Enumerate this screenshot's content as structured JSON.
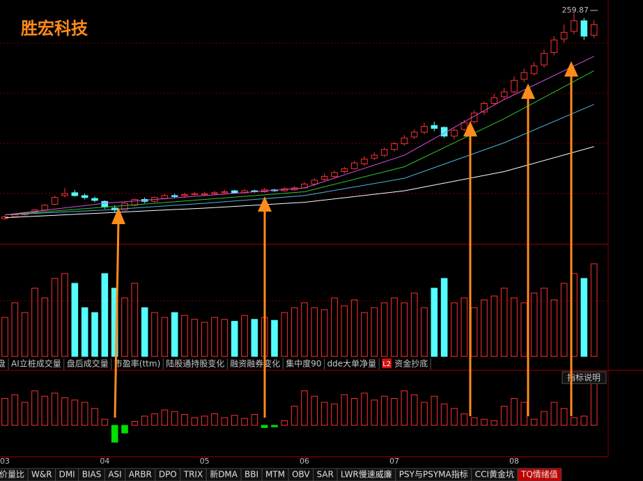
{
  "chart_data": {
    "type": "candlestick",
    "title": "胜宏科技",
    "open": [
      46,
      48,
      50,
      53,
      55,
      61,
      70,
      73,
      70,
      67,
      64,
      57,
      55,
      60,
      66,
      64,
      67,
      70,
      70,
      71,
      71,
      72,
      73,
      75,
      73,
      75,
      74,
      76,
      75,
      76,
      78,
      82,
      87,
      90,
      95,
      98,
      103,
      109,
      112,
      118,
      124,
      131,
      136,
      143,
      141,
      132,
      139,
      147,
      157,
      166,
      173,
      178,
      191,
      197,
      206,
      219,
      233,
      241,
      252,
      237
    ],
    "close": [
      48,
      50,
      52,
      55,
      60,
      68,
      72,
      70,
      68,
      65,
      58,
      55,
      62,
      66,
      64,
      68,
      70,
      69,
      71,
      72,
      72,
      73,
      74,
      73,
      75,
      74,
      76,
      75,
      77,
      78,
      82,
      86,
      90,
      94,
      98,
      104,
      108,
      112,
      118,
      124,
      130,
      136,
      142,
      140,
      132,
      138,
      146,
      156,
      166,
      172,
      178,
      190,
      198,
      205,
      218,
      232,
      240,
      252,
      236,
      248
    ],
    "high": [
      49,
      51,
      53,
      56,
      61,
      70,
      78,
      76,
      72,
      69,
      65,
      60,
      63,
      67,
      68,
      69,
      72,
      72,
      73,
      74,
      74,
      75,
      76,
      76,
      77,
      76,
      78,
      77,
      79,
      80,
      84,
      88,
      93,
      96,
      100,
      106,
      111,
      115,
      120,
      126,
      133,
      139,
      146,
      147,
      142,
      140,
      149,
      159,
      168,
      176,
      182,
      194,
      202,
      209,
      222,
      236,
      248,
      259.87,
      255,
      253
    ],
    "low": [
      45,
      47,
      49,
      52,
      54,
      60,
      68,
      69,
      66,
      63,
      56,
      52,
      54,
      59,
      62,
      63,
      66,
      67,
      68,
      70,
      70,
      71,
      72,
      72,
      72,
      73,
      73,
      74,
      74,
      75,
      77,
      80,
      85,
      88,
      93,
      97,
      101,
      107,
      110,
      116,
      122,
      129,
      134,
      137,
      130,
      129,
      137,
      145,
      154,
      164,
      170,
      176,
      188,
      195,
      203,
      216,
      229,
      238,
      232,
      234
    ],
    "volume": [
      40,
      55,
      45,
      70,
      60,
      80,
      85,
      75,
      50,
      45,
      85,
      70,
      60,
      75,
      50,
      45,
      40,
      45,
      42,
      38,
      35,
      40,
      38,
      36,
      42,
      38,
      40,
      37,
      45,
      50,
      55,
      50,
      48,
      60,
      52,
      58,
      45,
      50,
      55,
      60,
      55,
      65,
      50,
      70,
      80,
      55,
      60,
      50,
      58,
      62,
      70,
      60,
      55,
      65,
      70,
      58,
      75,
      85,
      80,
      95
    ],
    "indicator": [
      35,
      40,
      30,
      45,
      38,
      42,
      36,
      33,
      30,
      22,
      8,
      -22,
      -10,
      5,
      12,
      15,
      20,
      18,
      14,
      10,
      12,
      15,
      10,
      13,
      9,
      14,
      -3,
      -2,
      6,
      25,
      45,
      38,
      30,
      28,
      40,
      35,
      42,
      33,
      38,
      35,
      45,
      40,
      30,
      38,
      28,
      22,
      15,
      10,
      8,
      6,
      25,
      35,
      30,
      8,
      18,
      30,
      22,
      10,
      12,
      60
    ],
    "ylim": [
      20,
      270
    ],
    "vlim": [
      0,
      100
    ],
    "ilim": [
      -40,
      60
    ],
    "up_color": "#ff3232",
    "down_color": "#54fcfc",
    "neg_color": "#00e000",
    "ma_lines": [
      {
        "color": "#ffffff",
        "x": [
          0,
          10,
          20,
          30,
          40,
          50,
          59
        ],
        "values": [
          47,
          52,
          57,
          63,
          75,
          95,
          121
        ]
      },
      {
        "color": "#4fb6e0",
        "x": [
          0,
          10,
          20,
          30,
          40,
          50,
          59
        ],
        "values": [
          50,
          55,
          62,
          70,
          88,
          125,
          165
        ]
      },
      {
        "color": "#2ec82e",
        "x": [
          0,
          10,
          20,
          30,
          40,
          50,
          59
        ],
        "values": [
          50,
          58,
          66,
          74,
          100,
          150,
          200
        ]
      },
      {
        "color": "#e050e0",
        "x": [
          0,
          10,
          20,
          30,
          40,
          50,
          59
        ],
        "values": [
          50,
          62,
          70,
          78,
          112,
          170,
          215
        ]
      }
    ],
    "xticks": [
      {
        "value": 0,
        "label": "03"
      },
      {
        "value": 10,
        "label": "04"
      },
      {
        "value": 20,
        "label": "05"
      },
      {
        "value": 30,
        "label": "06"
      },
      {
        "value": 39,
        "label": "07"
      },
      {
        "value": 51,
        "label": "08"
      }
    ]
  },
  "ui": {
    "tabs": [
      "盘",
      "AI立桩成交量",
      "盘后成交量",
      "市盈率(ttm)",
      "陆股通持股变化",
      "融资融券变化",
      "集中度90",
      "dde大单净量",
      "L2",
      "资金抄底"
    ],
    "help_button": "指标说明",
    "bottom_tabs": [
      "价量比",
      "W&R",
      "DMI",
      "BIAS",
      "ASI",
      "ARBR",
      "DPO",
      "TRIX",
      "新DMA",
      "BBI",
      "MTM",
      "OBV",
      "SAR",
      "LWR慢速威廉",
      "PSY与PSYMA指标",
      "CCI黄金坑",
      "TQ情绪值"
    ]
  }
}
